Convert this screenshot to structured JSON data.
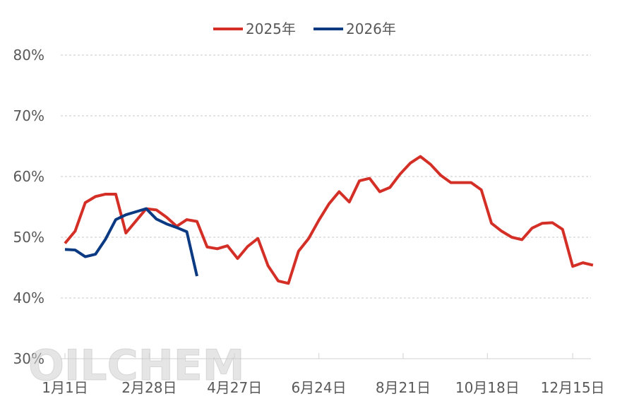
{
  "watermark": "OILCHEM",
  "chart_data": {
    "type": "line",
    "title": "",
    "xlabel": "",
    "ylabel": "",
    "ylim": [
      30,
      80
    ],
    "y_ticks": [
      30,
      40,
      50,
      60,
      70,
      80
    ],
    "y_tick_labels": [
      "30%",
      "40%",
      "50%",
      "60%",
      "70%",
      "80%"
    ],
    "x_range_weeks": [
      0,
      51.8
    ],
    "x_tick_positions": [
      0,
      8.3,
      16.7,
      25.0,
      33.3,
      41.6,
      50.0
    ],
    "x_tick_labels": [
      "1月1日",
      "2月28日",
      "4月27日",
      "6月24日",
      "8月21日",
      "10月18日",
      "12月15日"
    ],
    "grid": true,
    "legend_position": "top",
    "series": [
      {
        "name": "2025年",
        "color": "#d42f26",
        "values": [
          49.0,
          51.0,
          55.7,
          56.7,
          57.1,
          57.1,
          50.7,
          52.7,
          54.7,
          54.5,
          53.3,
          51.8,
          52.9,
          52.6,
          48.4,
          48.1,
          48.6,
          46.5,
          48.5,
          49.8,
          45.3,
          42.8,
          42.4,
          47.7,
          49.8,
          52.8,
          55.5,
          57.5,
          55.8,
          59.3,
          59.7,
          57.5,
          58.2,
          60.4,
          62.2,
          63.3,
          62.0,
          60.2,
          59.0,
          59.0,
          59.0,
          57.8,
          52.3,
          51.0,
          50.0,
          49.6,
          51.5,
          52.3,
          52.4,
          51.3,
          45.2,
          45.8,
          45.4
        ]
      },
      {
        "name": "2026年",
        "color": "#0b3a82",
        "values": [
          48.0,
          47.9,
          46.8,
          47.2,
          49.7,
          52.9,
          53.7,
          54.2,
          54.7,
          53.0,
          52.2,
          51.6,
          50.9,
          43.6
        ]
      }
    ]
  }
}
